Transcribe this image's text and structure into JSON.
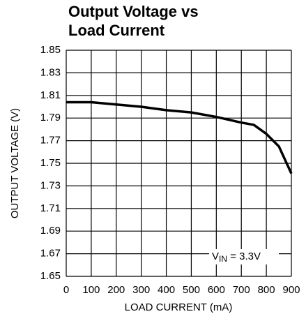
{
  "chart_data": {
    "type": "line",
    "title_lines": [
      "Output Voltage vs",
      "Load Current"
    ],
    "x_label": "LOAD CURRENT (mA)",
    "y_label": "OUTPUT VOLTAGE (V)",
    "annotation": [
      "V",
      "IN",
      " = 3.3V"
    ],
    "x": [
      0,
      100,
      200,
      300,
      400,
      500,
      600,
      700,
      750,
      800,
      850,
      900
    ],
    "series": [
      {
        "name": "VIN = 3.3V",
        "color": "#000000",
        "values": [
          1.804,
          1.804,
          1.802,
          1.8,
          1.797,
          1.795,
          1.791,
          1.786,
          1.784,
          1.776,
          1.765,
          1.741
        ]
      }
    ],
    "xlim": [
      0,
      900
    ],
    "xticks": [
      0,
      100,
      200,
      300,
      400,
      500,
      600,
      700,
      800,
      900
    ],
    "ylim": [
      1.65,
      1.85
    ],
    "yticks": [
      1.65,
      1.67,
      1.69,
      1.71,
      1.73,
      1.75,
      1.77,
      1.79,
      1.81,
      1.83,
      1.85
    ],
    "grid": true
  }
}
